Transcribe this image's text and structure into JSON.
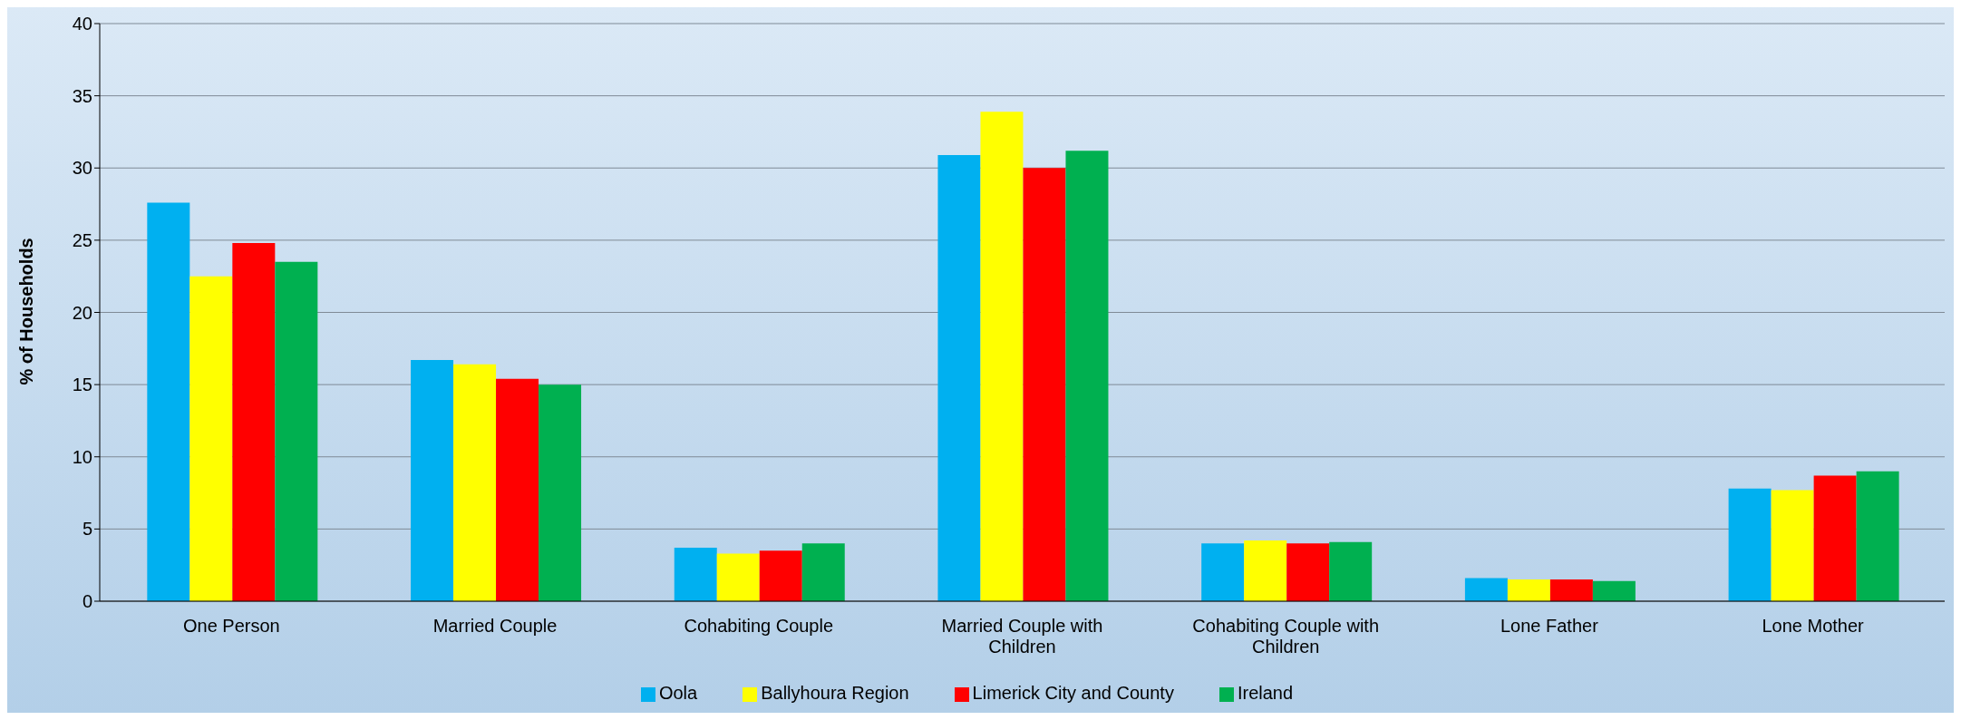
{
  "chart_data": {
    "type": "bar",
    "ylabel": "% of Households",
    "categories": [
      "One Person",
      "Married Couple",
      "Cohabiting Couple",
      "Married Couple with Children",
      "Cohabiting Couple with Children",
      "Lone Father",
      "Lone Mother"
    ],
    "series": [
      {
        "name": "Oola",
        "color": "#00b0f0",
        "values": [
          27.6,
          16.7,
          3.7,
          30.9,
          4.0,
          1.6,
          7.8
        ]
      },
      {
        "name": "Ballyhoura Region",
        "color": "#ffff00",
        "values": [
          22.5,
          16.4,
          3.3,
          33.9,
          4.2,
          1.5,
          7.7
        ]
      },
      {
        "name": "Limerick City and County",
        "color": "#ff0000",
        "values": [
          24.8,
          15.4,
          3.5,
          30.0,
          4.0,
          1.5,
          8.7
        ]
      },
      {
        "name": "Ireland",
        "color": "#00b050",
        "values": [
          23.5,
          15.0,
          4.0,
          31.2,
          4.1,
          1.4,
          9.0
        ]
      }
    ],
    "ylim": [
      0,
      40
    ],
    "yticks": [
      0,
      5,
      10,
      15,
      20,
      25,
      30,
      35,
      40
    ],
    "grid": "y",
    "legend": "bottom"
  }
}
